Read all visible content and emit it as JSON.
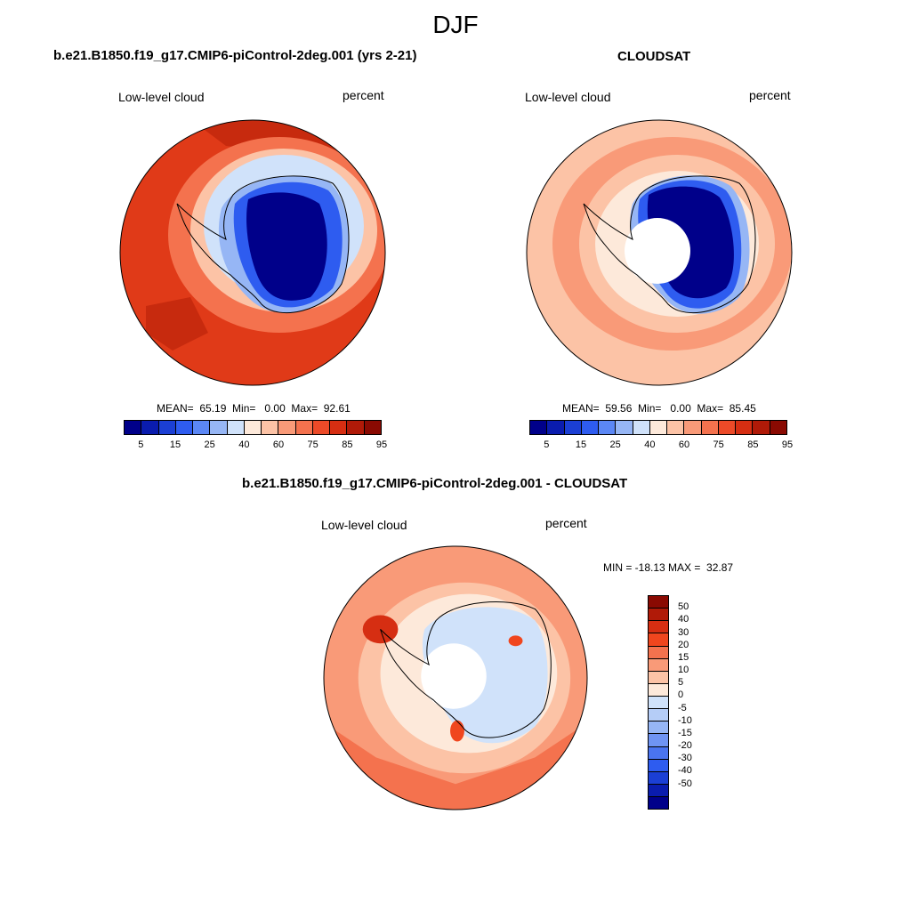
{
  "season": "DJF",
  "panels": [
    {
      "title": "b.e21.B1850.f19_g17.CMIP6-piControl-2deg.001 (yrs 2-21)",
      "left_label": "Low-level cloud",
      "right_label": "percent",
      "stats": "MEAN=  65.19  Min=   0.00  Max=  92.61"
    },
    {
      "title": "CLOUDSAT",
      "left_label": "Low-level cloud",
      "right_label": "percent",
      "stats": "MEAN=  59.56  Min=   0.00  Max=  85.45"
    },
    {
      "title": "b.e21.B1850.f19_g17.CMIP6-piControl-2deg.001 - CLOUDSAT",
      "left_label": "Low-level cloud",
      "right_label": "percent",
      "stats": "MIN = -18.13 MAX =  32.87"
    }
  ],
  "colorbar_abs": {
    "colors": [
      "#00008a",
      "#0a1cae",
      "#1b3fd4",
      "#2e5cf0",
      "#5b87f5",
      "#96b6f5",
      "#d0e2fa",
      "#fde9da",
      "#fcc3a6",
      "#f99a78",
      "#f4724e",
      "#ec4a28",
      "#d62e12",
      "#b01a08",
      "#8a0a02"
    ],
    "labels": [
      "5",
      "15",
      "25",
      "40",
      "60",
      "75",
      "85",
      "95"
    ]
  },
  "colorbar_diff": {
    "colors": [
      "#8a0a02",
      "#b01a08",
      "#d62e12",
      "#f0461e",
      "#f4724e",
      "#f99a78",
      "#fcc3a6",
      "#fde9da",
      "#d0e2fa",
      "#b5cdf7",
      "#96b6f5",
      "#6f94f3",
      "#4a74f0",
      "#2e5cf0",
      "#1b3fd4",
      "#0a1cae",
      "#00008a"
    ],
    "labels": [
      "50",
      "40",
      "30",
      "20",
      "15",
      "10",
      "5",
      "0",
      "-5",
      "-10",
      "-15",
      "-20",
      "-30",
      "-40",
      "-50"
    ]
  },
  "map_colors": {
    "ocean_hi_1": "#e03a18",
    "ocean_hi_2": "#c72a0e",
    "ocean_mid": "#f4724e",
    "ocean_light": "#fcc3a6",
    "ocean_pale": "#fde9da",
    "ice_dark": "#00008a",
    "ice_mid": "#2e5cf0",
    "ice_light": "#96b6f5",
    "diff_light_blue": "#d0e2fa",
    "coast": "#000000"
  }
}
